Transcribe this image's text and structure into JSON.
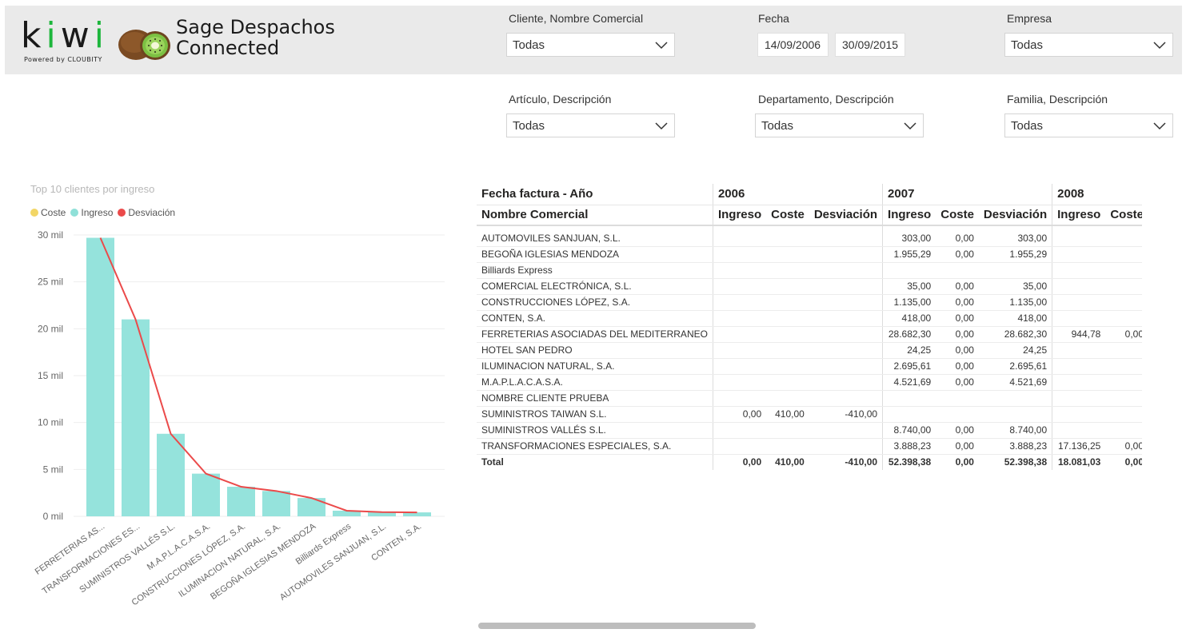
{
  "header": {
    "logo_text": "kiwi",
    "logo_tagline": "Powered  by  CLOUBITY",
    "title": "Sage Despachos\nConnected"
  },
  "filters": {
    "cliente": {
      "label": "Cliente, Nombre Comercial",
      "value": "Todas"
    },
    "fecha": {
      "label": "Fecha",
      "start": "14/09/2006",
      "end": "30/09/2015"
    },
    "empresa": {
      "label": "Empresa",
      "value": "Todas"
    },
    "articulo": {
      "label": "Artículo, Descripción",
      "value": "Todas"
    },
    "departamento": {
      "label": "Departamento, Descripción",
      "value": "Todas"
    },
    "familia": {
      "label": "Familia, Descripción",
      "value": "Todas"
    }
  },
  "chart": {
    "title": "Top 10 clientes por ingreso",
    "legend": [
      {
        "label": "Coste",
        "color": "#f2d666"
      },
      {
        "label": "Ingreso",
        "color": "#8fe0d8"
      },
      {
        "label": "Desviación",
        "color": "#eb4a4a"
      }
    ]
  },
  "chart_data": {
    "type": "bar",
    "categories": [
      "FERRETERIAS AS...",
      "TRANSFORMACIONES ES...",
      "SUMINISTROS VALLÉS S.L.",
      "M.A.P.L.A.C.A.S.A.",
      "CONSTRUCCIONES LÓPEZ, S.A.",
      "ILUMINACION NATURAL, S.A.",
      "BEGOÑA IGLESIAS MENDOZA",
      "Billiards Express",
      "AUTOMOVILES SANJUAN, S.L.",
      "CONTEN, S.A."
    ],
    "series": [
      {
        "name": "Ingreso",
        "type": "bar",
        "color": "#95e3dc",
        "values": [
          29700,
          21000,
          8800,
          4550,
          3150,
          2700,
          1950,
          600,
          450,
          420
        ]
      },
      {
        "name": "Desviación",
        "type": "line",
        "color": "#eb4a4a",
        "values": [
          29700,
          21000,
          8800,
          4550,
          3150,
          2700,
          1950,
          600,
          450,
          420
        ]
      }
    ],
    "yticks": [
      "0 mil",
      "5 mil",
      "10 mil",
      "15 mil",
      "20 mil",
      "25 mil",
      "30 mil"
    ],
    "ylim": [
      0,
      30000
    ]
  },
  "table": {
    "header_row1_label": "Fecha factura - Año",
    "header_row2_label": "Nombre Comercial",
    "years": [
      "2006",
      "2007",
      "2008"
    ],
    "col_labels": [
      "Ingreso",
      "Coste",
      "Desviación",
      "Ingreso",
      "Coste",
      "Desviación",
      "Ingreso",
      "Coste"
    ],
    "rows": [
      [
        "AUTOMOVILES SANJUAN, S.L.",
        "",
        "",
        "",
        "303,00",
        "0,00",
        "303,00",
        "",
        ""
      ],
      [
        "BEGOÑA IGLESIAS MENDOZA",
        "",
        "",
        "",
        "1.955,29",
        "0,00",
        "1.955,29",
        "",
        ""
      ],
      [
        "Billiards Express",
        "",
        "",
        "",
        "",
        "",
        "",
        "",
        ""
      ],
      [
        "COMERCIAL ELECTRÓNICA, S.L.",
        "",
        "",
        "",
        "35,00",
        "0,00",
        "35,00",
        "",
        ""
      ],
      [
        "CONSTRUCCIONES LÓPEZ, S.A.",
        "",
        "",
        "",
        "1.135,00",
        "0,00",
        "1.135,00",
        "",
        ""
      ],
      [
        "CONTEN, S.A.",
        "",
        "",
        "",
        "418,00",
        "0,00",
        "418,00",
        "",
        ""
      ],
      [
        "FERRETERIAS ASOCIADAS DEL MEDITERRANEO",
        "",
        "",
        "",
        "28.682,30",
        "0,00",
        "28.682,30",
        "944,78",
        "0,00"
      ],
      [
        "HOTEL SAN PEDRO",
        "",
        "",
        "",
        "24,25",
        "0,00",
        "24,25",
        "",
        ""
      ],
      [
        "ILUMINACION NATURAL, S.A.",
        "",
        "",
        "",
        "2.695,61",
        "0,00",
        "2.695,61",
        "",
        ""
      ],
      [
        "M.A.P.L.A.C.A.S.A.",
        "",
        "",
        "",
        "4.521,69",
        "0,00",
        "4.521,69",
        "",
        ""
      ],
      [
        "NOMBRE CLIENTE PRUEBA",
        "",
        "",
        "",
        "",
        "",
        "",
        "",
        ""
      ],
      [
        "SUMINISTROS TAIWAN S.L.",
        "0,00",
        "410,00",
        "-410,00",
        "",
        "",
        "",
        "",
        ""
      ],
      [
        "SUMINISTROS VALLÉS S.L.",
        "",
        "",
        "",
        "8.740,00",
        "0,00",
        "8.740,00",
        "",
        ""
      ],
      [
        "TRANSFORMACIONES ESPECIALES, S.A.",
        "",
        "",
        "",
        "3.888,23",
        "0,00",
        "3.888,23",
        "17.136,25",
        "0,00"
      ]
    ],
    "total": [
      "Total",
      "0,00",
      "410,00",
      "-410,00",
      "52.398,38",
      "0,00",
      "52.398,38",
      "18.081,03",
      "0,00"
    ]
  }
}
